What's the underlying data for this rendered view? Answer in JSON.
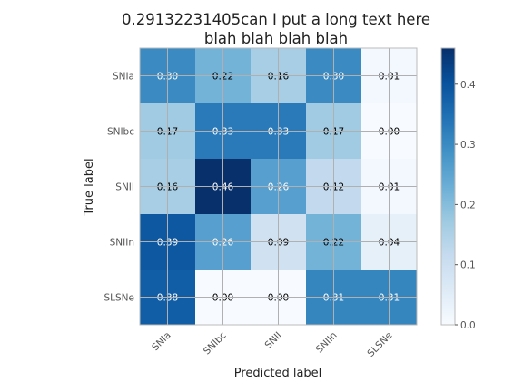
{
  "chart_data": {
    "type": "heatmap",
    "title_lines": [
      "0.29132231405can I put a long text here",
      "blah blah blah blah"
    ],
    "xlabel": "Predicted label",
    "ylabel": "True label",
    "x_categories": [
      "SNIa",
      "SNIbc",
      "SNII",
      "SNIIn",
      "SLSNe"
    ],
    "y_categories": [
      "SNIa",
      "SNIbc",
      "SNII",
      "SNIIn",
      "SLSNe"
    ],
    "values": [
      [
        0.3,
        0.22,
        0.16,
        0.3,
        0.01
      ],
      [
        0.17,
        0.33,
        0.33,
        0.17,
        0.0
      ],
      [
        0.16,
        0.46,
        0.26,
        0.12,
        0.01
      ],
      [
        0.39,
        0.26,
        0.09,
        0.22,
        0.04
      ],
      [
        0.38,
        0.0,
        0.0,
        0.31,
        0.31
      ]
    ],
    "cell_labels": [
      [
        "0.30",
        "0.22",
        "0.16",
        "0.30",
        "0.01"
      ],
      [
        "0.17",
        "0.33",
        "0.33",
        "0.17",
        "0.00"
      ],
      [
        "0.16",
        "0.46",
        "0.26",
        "0.12",
        "0.01"
      ],
      [
        "0.39",
        "0.26",
        "0.09",
        "0.22",
        "0.04"
      ],
      [
        "0.38",
        "0.00",
        "0.00",
        "0.31",
        "0.31"
      ]
    ],
    "colormap": "Blues",
    "value_range": [
      0,
      0.46
    ],
    "colorbar_ticks": [
      0.0,
      0.1,
      0.2,
      0.3,
      0.4
    ],
    "colorbar_tick_labels": [
      "0.0",
      "0.1",
      "0.2",
      "0.3",
      "0.4"
    ],
    "grid": true
  }
}
